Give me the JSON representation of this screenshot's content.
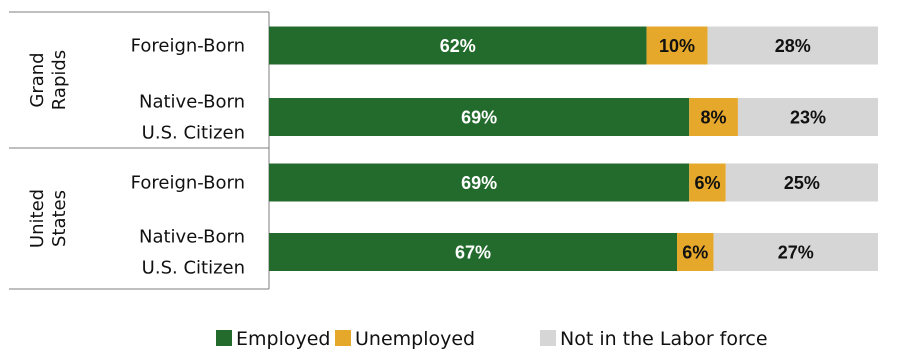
{
  "chart_data": {
    "type": "bar",
    "orientation": "horizontal",
    "stacked": true,
    "groups": [
      {
        "name": "Grand Rapids",
        "lines": [
          "Grand",
          "Rapids"
        ],
        "categories": [
          {
            "lines": [
              "Foreign-Born"
            ]
          },
          {
            "lines": [
              "Native-Born",
              "U.S. Citizen"
            ]
          }
        ]
      },
      {
        "name": "United States",
        "lines": [
          "United",
          "States"
        ],
        "categories": [
          {
            "lines": [
              "Foreign-Born"
            ]
          },
          {
            "lines": [
              "Native-Born",
              "U.S. Citizen"
            ]
          }
        ]
      }
    ],
    "series": [
      {
        "name": "Employed",
        "color": "#236b2d",
        "label_color": "#ffffff",
        "values": [
          62,
          69,
          69,
          67
        ],
        "labels": [
          "62%",
          "69%",
          "69%",
          "67%"
        ]
      },
      {
        "name": "Unemployed",
        "color": "#e6a82a",
        "label_color": "#111111",
        "values": [
          10,
          8,
          6,
          6
        ],
        "labels": [
          "10%",
          "8%",
          "6%",
          "6%"
        ]
      },
      {
        "name": "Not in the Labor force",
        "color": "#d6d6d6",
        "label_color": "#111111",
        "values": [
          28,
          23,
          25,
          27
        ],
        "labels": [
          "28%",
          "23%",
          "25%",
          "27%"
        ]
      }
    ],
    "xlim": [
      0,
      100
    ],
    "unit": "%",
    "grid": false,
    "legend": "bottom"
  }
}
